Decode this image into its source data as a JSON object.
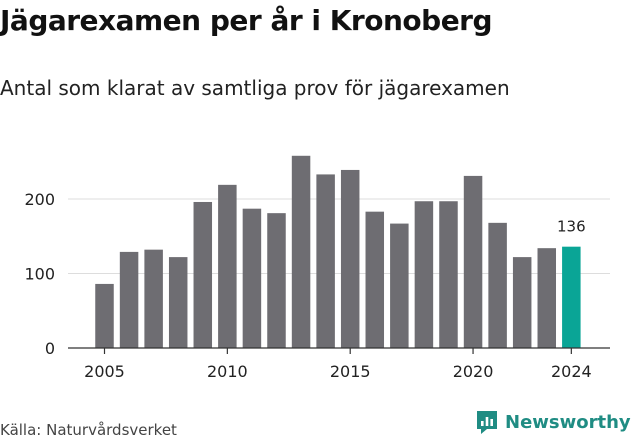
{
  "header": {
    "title": "Jägarexamen per år i Kronoberg",
    "subtitle": "Antal som klarat av samtliga prov för jägarexamen"
  },
  "footer": {
    "source": "Källa: Naturvårdsverket",
    "brand": "Newsworthy",
    "brand_icon": "newsworthy-logo-icon"
  },
  "colors": {
    "bar": "#6e6d72",
    "highlight": "#0aa596",
    "grid": "#dddddd",
    "brand": "#1f8c83"
  },
  "chart_data": {
    "type": "bar",
    "title": "Jägarexamen per år i Kronoberg",
    "subtitle": "Antal som klarat av samtliga prov för jägarexamen",
    "x": [
      2005,
      2006,
      2007,
      2008,
      2009,
      2010,
      2011,
      2012,
      2013,
      2014,
      2015,
      2016,
      2017,
      2018,
      2019,
      2020,
      2021,
      2022,
      2023,
      2024
    ],
    "values": [
      86,
      129,
      132,
      122,
      196,
      219,
      187,
      181,
      258,
      233,
      239,
      183,
      167,
      197,
      197,
      231,
      168,
      122,
      134,
      136
    ],
    "highlight_category": 2024,
    "data_labels": [
      {
        "x": 2024,
        "label": "136"
      }
    ],
    "xticks": [
      2005,
      2010,
      2015,
      2020,
      2024
    ],
    "yticks": [
      0,
      100,
      200
    ],
    "ylim": [
      0,
      270
    ],
    "xlabel": "",
    "ylabel": "",
    "grid": "horizontal"
  }
}
